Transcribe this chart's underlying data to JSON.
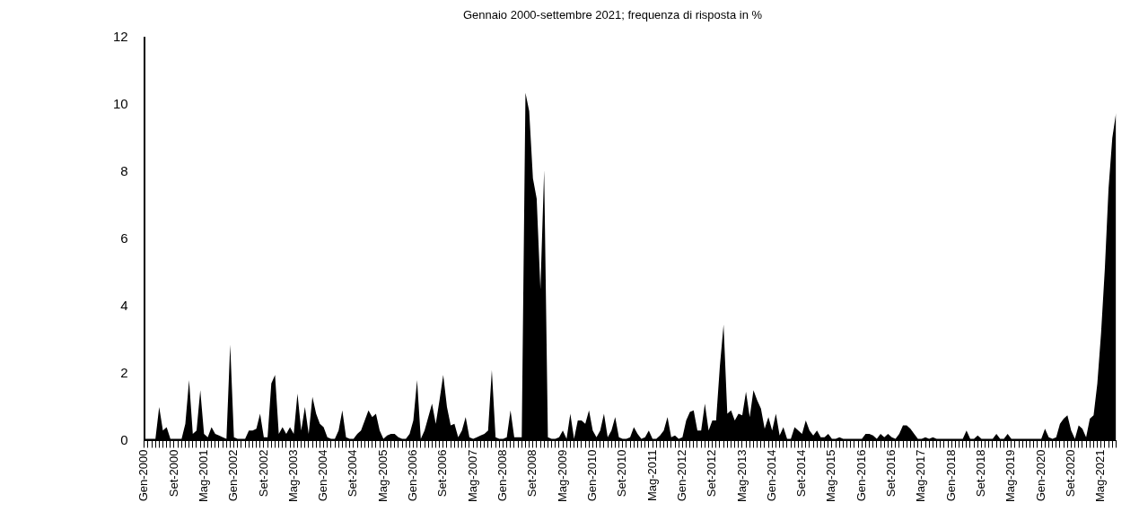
{
  "chart_data": {
    "type": "area",
    "title": "Gennaio 2000-settembre 2021; frequenza di risposta in %",
    "color": "#000000",
    "categories": [
      "Gen-2000",
      null,
      null,
      null,
      null,
      null,
      null,
      null,
      "Set-2000",
      null,
      null,
      null,
      null,
      null,
      null,
      null,
      "Mag-2001",
      null,
      null,
      null,
      null,
      null,
      null,
      null,
      "Gen-2002",
      null,
      null,
      null,
      null,
      null,
      null,
      null,
      "Set-2002",
      null,
      null,
      null,
      null,
      null,
      null,
      null,
      "Mag-2003",
      null,
      null,
      null,
      null,
      null,
      null,
      null,
      "Gen-2004",
      null,
      null,
      null,
      null,
      null,
      null,
      null,
      "Set-2004",
      null,
      null,
      null,
      null,
      null,
      null,
      null,
      "Mag-2005",
      null,
      null,
      null,
      null,
      null,
      null,
      null,
      "Gen-2006",
      null,
      null,
      null,
      null,
      null,
      null,
      null,
      "Set-2006",
      null,
      null,
      null,
      null,
      null,
      null,
      null,
      "Mag-2007",
      null,
      null,
      null,
      null,
      null,
      null,
      null,
      "Gen-2008",
      null,
      null,
      null,
      null,
      null,
      null,
      null,
      "Set-2008",
      null,
      null,
      null,
      null,
      null,
      null,
      null,
      "Mag-2009",
      null,
      null,
      null,
      null,
      null,
      null,
      null,
      "Gen-2010",
      null,
      null,
      null,
      null,
      null,
      null,
      null,
      "Set-2010",
      null,
      null,
      null,
      null,
      null,
      null,
      null,
      "Mag-2011",
      null,
      null,
      null,
      null,
      null,
      null,
      null,
      "Gen-2012",
      null,
      null,
      null,
      null,
      null,
      null,
      null,
      "Set-2012",
      null,
      null,
      null,
      null,
      null,
      null,
      null,
      "Mag-2013",
      null,
      null,
      null,
      null,
      null,
      null,
      null,
      "Gen-2014",
      null,
      null,
      null,
      null,
      null,
      null,
      null,
      "Set-2014",
      null,
      null,
      null,
      null,
      null,
      null,
      null,
      "Mag-2015",
      null,
      null,
      null,
      null,
      null,
      null,
      null,
      "Gen-2016",
      null,
      null,
      null,
      null,
      null,
      null,
      null,
      "Set-2016",
      null,
      null,
      null,
      null,
      null,
      null,
      null,
      "Mag-2017",
      null,
      null,
      null,
      null,
      null,
      null,
      null,
      "Gen-2018",
      null,
      null,
      null,
      null,
      null,
      null,
      null,
      "Set-2018",
      null,
      null,
      null,
      null,
      null,
      null,
      null,
      "Mag-2019",
      null,
      null,
      null,
      null,
      null,
      null,
      null,
      "Gen-2020",
      null,
      null,
      null,
      null,
      null,
      null,
      null,
      "Set-2020",
      null,
      null,
      null,
      null,
      null,
      null,
      null,
      "Mag-2021",
      null,
      null,
      null,
      null
    ],
    "values": [
      0.05,
      0.05,
      0.05,
      0.05,
      1.0,
      0.3,
      0.4,
      0.05,
      0.05,
      0.05,
      0.05,
      0.5,
      1.8,
      0.2,
      0.3,
      1.5,
      0.2,
      0.1,
      0.4,
      0.2,
      0.15,
      0.1,
      0.05,
      2.85,
      0.1,
      0.05,
      0.05,
      0.05,
      0.3,
      0.3,
      0.35,
      0.8,
      0.1,
      0.1,
      1.7,
      1.95,
      0.2,
      0.4,
      0.2,
      0.4,
      0.2,
      1.4,
      0.3,
      1.0,
      0.2,
      1.3,
      0.8,
      0.5,
      0.4,
      0.1,
      0.05,
      0.05,
      0.3,
      0.9,
      0.1,
      0.05,
      0.05,
      0.2,
      0.3,
      0.6,
      0.9,
      0.7,
      0.8,
      0.3,
      0.05,
      0.15,
      0.2,
      0.2,
      0.1,
      0.05,
      0.05,
      0.2,
      0.6,
      1.8,
      0.05,
      0.3,
      0.7,
      1.1,
      0.5,
      1.2,
      1.95,
      1.0,
      0.45,
      0.5,
      0.1,
      0.3,
      0.7,
      0.1,
      0.05,
      0.1,
      0.15,
      0.2,
      0.3,
      2.1,
      0.1,
      0.05,
      0.05,
      0.1,
      0.9,
      0.1,
      0.1,
      0.1,
      10.35,
      9.8,
      7.8,
      7.2,
      4.5,
      8.05,
      0.1,
      0.05,
      0.05,
      0.1,
      0.3,
      0.05,
      0.8,
      0.05,
      0.6,
      0.6,
      0.5,
      0.9,
      0.3,
      0.1,
      0.3,
      0.8,
      0.1,
      0.3,
      0.7,
      0.1,
      0.05,
      0.05,
      0.1,
      0.4,
      0.2,
      0.05,
      0.1,
      0.3,
      0.05,
      0.05,
      0.15,
      0.3,
      0.7,
      0.1,
      0.15,
      0.05,
      0.1,
      0.6,
      0.85,
      0.9,
      0.3,
      0.3,
      1.1,
      0.3,
      0.6,
      0.6,
      2.2,
      3.45,
      0.8,
      0.9,
      0.6,
      0.8,
      0.75,
      1.45,
      0.7,
      1.5,
      1.2,
      0.95,
      0.35,
      0.7,
      0.3,
      0.8,
      0.15,
      0.4,
      0.05,
      0.05,
      0.4,
      0.3,
      0.2,
      0.6,
      0.3,
      0.15,
      0.3,
      0.1,
      0.1,
      0.2,
      0.05,
      0.05,
      0.1,
      0.05,
      0.05,
      0.05,
      0.05,
      0.05,
      0.05,
      0.2,
      0.2,
      0.15,
      0.05,
      0.2,
      0.1,
      0.2,
      0.1,
      0.05,
      0.2,
      0.45,
      0.45,
      0.35,
      0.2,
      0.05,
      0.05,
      0.1,
      0.05,
      0.1,
      0.05,
      0.05,
      0.05,
      0.05,
      0.05,
      0.05,
      0.05,
      0.05,
      0.3,
      0.05,
      0.05,
      0.15,
      0.05,
      0.05,
      0.05,
      0.05,
      0.2,
      0.05,
      0.05,
      0.2,
      0.05,
      0.05,
      0.05,
      0.05,
      0.05,
      0.05,
      0.05,
      0.05,
      0.05,
      0.35,
      0.1,
      0.05,
      0.1,
      0.5,
      0.65,
      0.75,
      0.3,
      0.05,
      0.45,
      0.35,
      0.1,
      0.65,
      0.75,
      1.7,
      3.2,
      5.1,
      7.5,
      9.0,
      9.75
    ],
    "ylim": [
      0,
      12
    ],
    "yticks": [
      0,
      2,
      4,
      6,
      8,
      10,
      12
    ]
  }
}
